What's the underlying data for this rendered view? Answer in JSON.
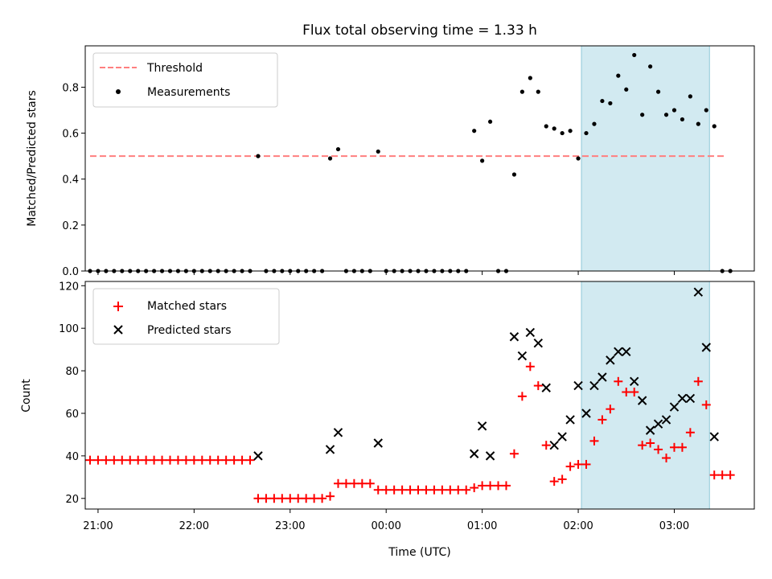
{
  "chart_data": [
    {
      "type": "scatter",
      "title": "Flux total observing time = 1.33 h",
      "xlabel": "",
      "ylabel": "Matched/Predicted stars",
      "xlim": [
        "20:52",
        "03:50"
      ],
      "ylim": [
        0,
        0.98
      ],
      "yticks": [
        0.0,
        0.2,
        0.4,
        0.6,
        0.8
      ],
      "ytick_labels": [
        "0.0",
        "0.2",
        "0.4",
        "0.6",
        "0.8"
      ],
      "legend_position": "upper left",
      "shaded_region": {
        "x_start": "02:02",
        "x_end": "03:22",
        "color": "#add8e6"
      },
      "threshold": {
        "name": "Threshold",
        "value": 0.5,
        "x_start": "20:55",
        "x_end": "03:32",
        "color": "#ff7f7f",
        "style": "dashed"
      },
      "series": [
        {
          "name": "Measurements",
          "color": "#000000",
          "marker": "dot",
          "points": [
            [
              "20:55",
              0
            ],
            [
              "21:00",
              0
            ],
            [
              "21:05",
              0
            ],
            [
              "21:10",
              0
            ],
            [
              "21:15",
              0
            ],
            [
              "21:20",
              0
            ],
            [
              "21:25",
              0
            ],
            [
              "21:30",
              0
            ],
            [
              "21:35",
              0
            ],
            [
              "21:40",
              0
            ],
            [
              "21:45",
              0
            ],
            [
              "21:50",
              0
            ],
            [
              "21:55",
              0
            ],
            [
              "22:00",
              0
            ],
            [
              "22:05",
              0
            ],
            [
              "22:10",
              0
            ],
            [
              "22:15",
              0
            ],
            [
              "22:20",
              0
            ],
            [
              "22:25",
              0
            ],
            [
              "22:30",
              0
            ],
            [
              "22:35",
              0
            ],
            [
              "22:40",
              0.5
            ],
            [
              "22:45",
              0
            ],
            [
              "22:50",
              0
            ],
            [
              "22:55",
              0
            ],
            [
              "23:00",
              0
            ],
            [
              "23:05",
              0
            ],
            [
              "23:10",
              0
            ],
            [
              "23:15",
              0
            ],
            [
              "23:20",
              0
            ],
            [
              "23:25",
              0.49
            ],
            [
              "23:30",
              0.53
            ],
            [
              "23:35",
              0
            ],
            [
              "23:40",
              0
            ],
            [
              "23:45",
              0
            ],
            [
              "23:50",
              0
            ],
            [
              "23:55",
              0.52
            ],
            [
              "00:00",
              0
            ],
            [
              "00:05",
              0
            ],
            [
              "00:10",
              0
            ],
            [
              "00:15",
              0
            ],
            [
              "00:20",
              0
            ],
            [
              "00:25",
              0
            ],
            [
              "00:30",
              0
            ],
            [
              "00:35",
              0
            ],
            [
              "00:40",
              0
            ],
            [
              "00:45",
              0
            ],
            [
              "00:50",
              0
            ],
            [
              "00:55",
              0.61
            ],
            [
              "01:00",
              0.48
            ],
            [
              "01:05",
              0.65
            ],
            [
              "01:10",
              0
            ],
            [
              "01:15",
              0
            ],
            [
              "01:20",
              0.42
            ],
            [
              "01:25",
              0.78
            ],
            [
              "01:30",
              0.84
            ],
            [
              "01:35",
              0.78
            ],
            [
              "01:40",
              0.63
            ],
            [
              "01:45",
              0.62
            ],
            [
              "01:50",
              0.6
            ],
            [
              "01:55",
              0.61
            ],
            [
              "02:00",
              0.49
            ],
            [
              "02:05",
              0.6
            ],
            [
              "02:10",
              0.64
            ],
            [
              "02:15",
              0.74
            ],
            [
              "02:20",
              0.73
            ],
            [
              "02:25",
              0.85
            ],
            [
              "02:30",
              0.79
            ],
            [
              "02:35",
              0.94
            ],
            [
              "02:40",
              0.68
            ],
            [
              "02:45",
              0.89
            ],
            [
              "02:50",
              0.78
            ],
            [
              "02:55",
              0.68
            ],
            [
              "03:00",
              0.7
            ],
            [
              "03:05",
              0.66
            ],
            [
              "03:10",
              0.76
            ],
            [
              "03:15",
              0.64
            ],
            [
              "03:20",
              0.7
            ],
            [
              "03:25",
              0.63
            ],
            [
              "03:30",
              0
            ],
            [
              "03:35",
              0
            ]
          ]
        }
      ]
    },
    {
      "type": "scatter",
      "title": "",
      "xlabel": "Time (UTC)",
      "ylabel": "Count",
      "xlim": [
        "20:52",
        "03:50"
      ],
      "ylim": [
        15,
        122
      ],
      "yticks": [
        20,
        40,
        60,
        80,
        100,
        120
      ],
      "ytick_labels": [
        "20",
        "40",
        "60",
        "80",
        "100",
        "120"
      ],
      "xticks": [
        "21:00",
        "22:00",
        "23:00",
        "00:00",
        "01:00",
        "02:00",
        "03:00"
      ],
      "xtick_labels": [
        "21:00",
        "22:00",
        "23:00",
        "00:00",
        "01:00",
        "02:00",
        "03:00"
      ],
      "legend_position": "upper left",
      "shaded_region": {
        "x_start": "02:02",
        "x_end": "03:22",
        "color": "#add8e6"
      },
      "series": [
        {
          "name": "Matched stars",
          "color": "#ff0000",
          "marker": "plus",
          "points": [
            [
              "20:55",
              38
            ],
            [
              "21:00",
              38
            ],
            [
              "21:05",
              38
            ],
            [
              "21:10",
              38
            ],
            [
              "21:15",
              38
            ],
            [
              "21:20",
              38
            ],
            [
              "21:25",
              38
            ],
            [
              "21:30",
              38
            ],
            [
              "21:35",
              38
            ],
            [
              "21:40",
              38
            ],
            [
              "21:45",
              38
            ],
            [
              "21:50",
              38
            ],
            [
              "21:55",
              38
            ],
            [
              "22:00",
              38
            ],
            [
              "22:05",
              38
            ],
            [
              "22:10",
              38
            ],
            [
              "22:15",
              38
            ],
            [
              "22:20",
              38
            ],
            [
              "22:25",
              38
            ],
            [
              "22:30",
              38
            ],
            [
              "22:35",
              38
            ],
            [
              "22:40",
              20
            ],
            [
              "22:45",
              20
            ],
            [
              "22:50",
              20
            ],
            [
              "22:55",
              20
            ],
            [
              "23:00",
              20
            ],
            [
              "23:05",
              20
            ],
            [
              "23:10",
              20
            ],
            [
              "23:15",
              20
            ],
            [
              "23:20",
              20
            ],
            [
              "23:25",
              21
            ],
            [
              "23:30",
              27
            ],
            [
              "23:35",
              27
            ],
            [
              "23:40",
              27
            ],
            [
              "23:45",
              27
            ],
            [
              "23:50",
              27
            ],
            [
              "23:55",
              24
            ],
            [
              "00:00",
              24
            ],
            [
              "00:05",
              24
            ],
            [
              "00:10",
              24
            ],
            [
              "00:15",
              24
            ],
            [
              "00:20",
              24
            ],
            [
              "00:25",
              24
            ],
            [
              "00:30",
              24
            ],
            [
              "00:35",
              24
            ],
            [
              "00:40",
              24
            ],
            [
              "00:45",
              24
            ],
            [
              "00:50",
              24
            ],
            [
              "00:55",
              25
            ],
            [
              "01:00",
              26
            ],
            [
              "01:05",
              26
            ],
            [
              "01:10",
              26
            ],
            [
              "01:15",
              26
            ],
            [
              "01:20",
              41
            ],
            [
              "01:25",
              68
            ],
            [
              "01:30",
              82
            ],
            [
              "01:35",
              73
            ],
            [
              "01:40",
              45
            ],
            [
              "01:45",
              28
            ],
            [
              "01:50",
              29
            ],
            [
              "01:55",
              35
            ],
            [
              "02:00",
              36
            ],
            [
              "02:05",
              36
            ],
            [
              "02:10",
              47
            ],
            [
              "02:15",
              57
            ],
            [
              "02:20",
              62
            ],
            [
              "02:25",
              75
            ],
            [
              "02:30",
              70
            ],
            [
              "02:35",
              70
            ],
            [
              "02:40",
              45
            ],
            [
              "02:45",
              46
            ],
            [
              "02:50",
              43
            ],
            [
              "02:55",
              39
            ],
            [
              "03:00",
              44
            ],
            [
              "03:05",
              44
            ],
            [
              "03:10",
              51
            ],
            [
              "03:15",
              75
            ],
            [
              "03:20",
              64
            ],
            [
              "03:25",
              31
            ],
            [
              "03:30",
              31
            ],
            [
              "03:35",
              31
            ]
          ]
        },
        {
          "name": "Predicted stars",
          "color": "#000000",
          "marker": "x",
          "points": [
            [
              "22:40",
              40
            ],
            [
              "23:25",
              43
            ],
            [
              "23:30",
              51
            ],
            [
              "23:55",
              46
            ],
            [
              "00:55",
              41
            ],
            [
              "01:00",
              54
            ],
            [
              "01:05",
              40
            ],
            [
              "01:20",
              96
            ],
            [
              "01:25",
              87
            ],
            [
              "01:30",
              98
            ],
            [
              "01:35",
              93
            ],
            [
              "01:40",
              72
            ],
            [
              "01:45",
              45
            ],
            [
              "01:50",
              49
            ],
            [
              "01:55",
              57
            ],
            [
              "02:00",
              73
            ],
            [
              "02:05",
              60
            ],
            [
              "02:10",
              73
            ],
            [
              "02:15",
              77
            ],
            [
              "02:20",
              85
            ],
            [
              "02:25",
              89
            ],
            [
              "02:30",
              89
            ],
            [
              "02:35",
              75
            ],
            [
              "02:40",
              66
            ],
            [
              "02:45",
              52
            ],
            [
              "02:50",
              55
            ],
            [
              "02:55",
              57
            ],
            [
              "03:00",
              63
            ],
            [
              "03:05",
              67
            ],
            [
              "03:10",
              67
            ],
            [
              "03:15",
              117
            ],
            [
              "03:20",
              91
            ],
            [
              "03:25",
              49
            ]
          ]
        }
      ]
    }
  ]
}
